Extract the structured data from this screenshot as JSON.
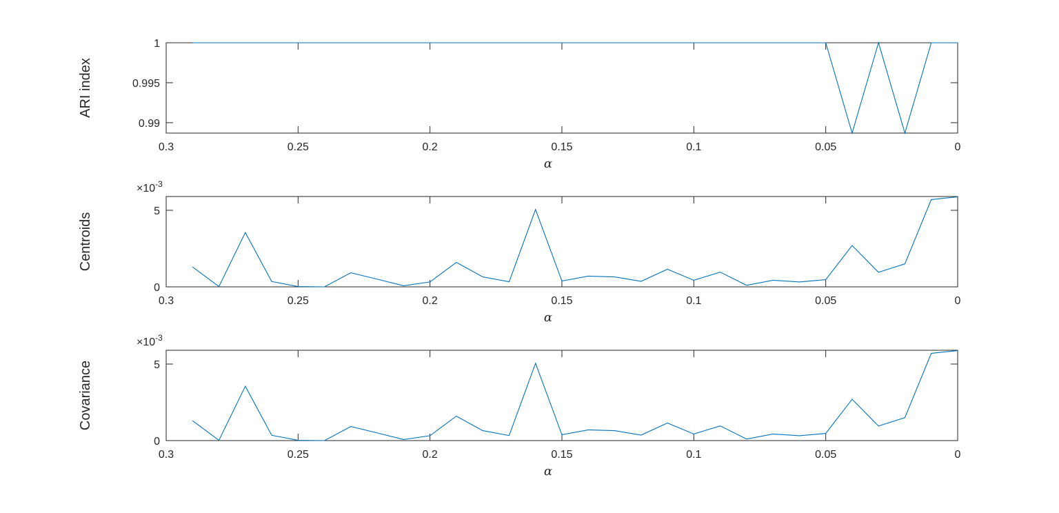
{
  "colors": {
    "series": "#0072BD",
    "axis": "#262626"
  },
  "chart_data": [
    {
      "type": "line",
      "xlabel": "α",
      "ylabel": "ARI index",
      "xlim": [
        0.3,
        0
      ],
      "x_reversed": true,
      "ylim": [
        0.9887,
        1.0
      ],
      "exponent_label": "",
      "grid": false,
      "xticks": [
        0.3,
        0.25,
        0.2,
        0.15,
        0.1,
        0.05,
        0
      ],
      "xtick_labels": [
        "0.3",
        "0.25",
        "0.2",
        "0.15",
        "0.1",
        "0.05",
        "0"
      ],
      "yticks": [
        0.99,
        0.995,
        1
      ],
      "ytick_labels": [
        "0.99",
        "0.995",
        "1"
      ],
      "x": [
        0.29,
        0.28,
        0.27,
        0.26,
        0.25,
        0.24,
        0.23,
        0.22,
        0.21,
        0.2,
        0.19,
        0.18,
        0.17,
        0.16,
        0.15,
        0.14,
        0.13,
        0.12,
        0.11,
        0.1,
        0.09,
        0.08,
        0.07,
        0.06,
        0.05,
        0.04,
        0.03,
        0.02,
        0.01,
        0
      ],
      "y": [
        1,
        1,
        1,
        1,
        1,
        1,
        1,
        1,
        1,
        1,
        1,
        1,
        1,
        1,
        1,
        1,
        1,
        1,
        1,
        1,
        1,
        1,
        1,
        1,
        1,
        0.9887,
        1,
        0.9887,
        1,
        1
      ]
    },
    {
      "type": "line",
      "xlabel": "α",
      "ylabel": "Centroids",
      "xlim": [
        0.3,
        0
      ],
      "x_reversed": true,
      "ylim": [
        0,
        5.9
      ],
      "exponent_label": "×10",
      "exponent_power": "-3",
      "grid": false,
      "xticks": [
        0.3,
        0.25,
        0.2,
        0.15,
        0.1,
        0.05,
        0
      ],
      "xtick_labels": [
        "0.3",
        "0.25",
        "0.2",
        "0.15",
        "0.1",
        "0.05",
        "0"
      ],
      "yticks": [
        0,
        5
      ],
      "ytick_labels": [
        "0",
        "5"
      ],
      "x": [
        0.29,
        0.28,
        0.27,
        0.26,
        0.25,
        0.24,
        0.23,
        0.22,
        0.21,
        0.2,
        0.19,
        0.18,
        0.17,
        0.16,
        0.15,
        0.14,
        0.13,
        0.12,
        0.11,
        0.1,
        0.09,
        0.08,
        0.07,
        0.06,
        0.05,
        0.04,
        0.03,
        0.02,
        0.01,
        0
      ],
      "y": [
        1.3,
        0.02,
        3.55,
        0.35,
        0.02,
        0.0,
        0.92,
        0.5,
        0.07,
        0.32,
        1.6,
        0.65,
        0.33,
        5.05,
        0.38,
        0.7,
        0.65,
        0.36,
        1.15,
        0.43,
        0.96,
        0.1,
        0.43,
        0.32,
        0.47,
        2.7,
        0.95,
        1.5,
        5.7,
        5.88
      ]
    },
    {
      "type": "line",
      "xlabel": "α",
      "ylabel": "Covariance",
      "xlim": [
        0.3,
        0
      ],
      "x_reversed": true,
      "ylim": [
        0,
        5.9
      ],
      "exponent_label": "×10",
      "exponent_power": "-3",
      "grid": false,
      "xticks": [
        0.3,
        0.25,
        0.2,
        0.15,
        0.1,
        0.05,
        0
      ],
      "xtick_labels": [
        "0.3",
        "0.25",
        "0.2",
        "0.15",
        "0.1",
        "0.05",
        "0"
      ],
      "yticks": [
        0,
        5
      ],
      "ytick_labels": [
        "0",
        "5"
      ],
      "x": [
        0.29,
        0.28,
        0.27,
        0.26,
        0.25,
        0.24,
        0.23,
        0.22,
        0.21,
        0.2,
        0.19,
        0.18,
        0.17,
        0.16,
        0.15,
        0.14,
        0.13,
        0.12,
        0.11,
        0.1,
        0.09,
        0.08,
        0.07,
        0.06,
        0.05,
        0.04,
        0.03,
        0.02,
        0.01,
        0
      ],
      "y": [
        1.3,
        0.02,
        3.55,
        0.35,
        0.02,
        0.0,
        0.92,
        0.5,
        0.07,
        0.32,
        1.6,
        0.65,
        0.33,
        5.05,
        0.38,
        0.7,
        0.65,
        0.36,
        1.15,
        0.43,
        0.96,
        0.1,
        0.43,
        0.32,
        0.47,
        2.7,
        0.95,
        1.5,
        5.7,
        5.88
      ]
    }
  ]
}
